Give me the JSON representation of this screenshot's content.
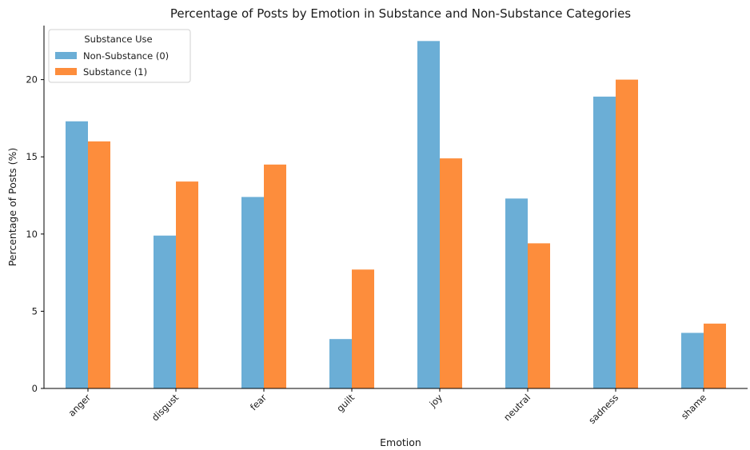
{
  "chart_data": {
    "type": "bar",
    "title": "Percentage of Posts by Emotion in Substance and Non-Substance Categories",
    "xlabel": "Emotion",
    "ylabel": "Percentage of Posts (%)",
    "categories": [
      "anger",
      "disgust",
      "fear",
      "guilt",
      "joy",
      "neutral",
      "sadness",
      "shame"
    ],
    "series": [
      {
        "name": "Non-Substance (0)",
        "color": "#6baed6",
        "values": [
          17.3,
          9.9,
          12.4,
          3.2,
          22.5,
          12.3,
          18.9,
          3.6
        ]
      },
      {
        "name": "Substance (1)",
        "color": "#fd8d3c",
        "values": [
          16.0,
          13.4,
          14.5,
          7.7,
          14.9,
          9.4,
          20.0,
          4.2
        ]
      }
    ],
    "ylim": [
      0,
      23.5
    ],
    "yticks": [
      0,
      5,
      10,
      15,
      20
    ],
    "legend_title": "Substance Use",
    "legend_position": "top-left",
    "grid": false
  }
}
